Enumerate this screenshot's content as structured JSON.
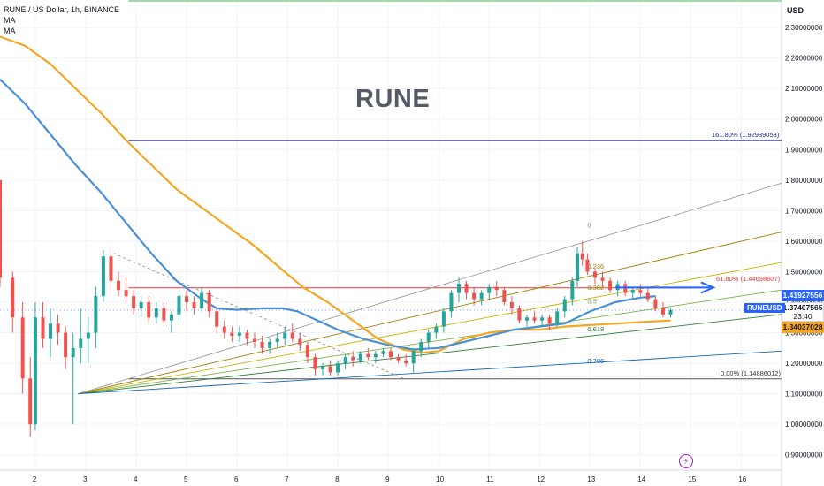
{
  "header": {
    "title": "RUNE / US Dollar, 1h, BINANCE",
    "ma1": "MA",
    "ma2": "MA"
  },
  "watermark": "RUNE",
  "currency": "USD",
  "colors": {
    "up": "#26a69a",
    "down": "#ef5350",
    "ma_fast": "#4a90d9",
    "ma_slow": "#f5a623",
    "accent": "#2962ff"
  },
  "chart_data": {
    "type": "candlestick",
    "x_tick_labels": [
      "2",
      "3",
      "4",
      "5",
      "6",
      "7",
      "8",
      "9",
      "10",
      "11",
      "12",
      "13",
      "14",
      "15",
      "16"
    ],
    "y_tick_labels": [
      "2.30000000",
      "2.20000000",
      "2.10000000",
      "2.00000000",
      "1.90000000",
      "1.80000000",
      "1.70000000",
      "1.60000000",
      "1.50000000",
      "1.40000000",
      "1.30000000",
      "1.20000000",
      "1.10000000",
      "1.00000000",
      "0.90000000"
    ],
    "ylim": [
      0.85,
      2.39
    ],
    "xlim": [
      1.3,
      16.8
    ],
    "price_labels": {
      "high_level": "1.41927556",
      "current": "1.37407565",
      "countdown": "23:40",
      "ma_level": "1.34037028",
      "symbol": "RUNEUSD"
    },
    "fib_extension": {
      "label": "161.80% (1.92939053)",
      "value": 1.92939053
    },
    "fib_618": {
      "label": "61.80% (1.44698607)",
      "value": 1.44698607
    },
    "fib_base": {
      "label": "0.00% (1.14886012)",
      "value": 1.14886012
    },
    "fan_labels": [
      "0",
      "0.236",
      "0.382",
      "0.5",
      "0.618",
      "0.786"
    ],
    "top_line_value": 2.39,
    "ma_fast": [
      [
        1.3,
        2.13
      ],
      [
        1.8,
        2.05
      ],
      [
        2.3,
        1.95
      ],
      [
        2.8,
        1.85
      ],
      [
        3.3,
        1.76
      ],
      [
        3.8,
        1.66
      ],
      [
        4.3,
        1.56
      ],
      [
        4.8,
        1.47
      ],
      [
        5.3,
        1.41
      ],
      [
        5.6,
        1.38
      ],
      [
        6.0,
        1.375
      ],
      [
        6.5,
        1.38
      ],
      [
        6.9,
        1.38
      ],
      [
        7.2,
        1.37
      ],
      [
        7.6,
        1.34
      ],
      [
        8.0,
        1.31
      ],
      [
        8.5,
        1.28
      ],
      [
        9.0,
        1.26
      ],
      [
        9.5,
        1.245
      ],
      [
        10.0,
        1.25
      ],
      [
        10.5,
        1.27
      ],
      [
        11.0,
        1.29
      ],
      [
        11.5,
        1.31
      ],
      [
        12.0,
        1.32
      ],
      [
        12.5,
        1.33
      ],
      [
        13.0,
        1.37
      ],
      [
        13.5,
        1.4
      ],
      [
        14.0,
        1.415
      ],
      [
        14.3,
        1.42
      ]
    ],
    "ma_slow": [
      [
        1.3,
        2.27
      ],
      [
        1.8,
        2.24
      ],
      [
        2.3,
        2.18
      ],
      [
        2.8,
        2.1
      ],
      [
        3.3,
        2.02
      ],
      [
        3.8,
        1.93
      ],
      [
        4.3,
        1.85
      ],
      [
        4.8,
        1.77
      ],
      [
        5.3,
        1.71
      ],
      [
        5.8,
        1.65
      ],
      [
        6.3,
        1.59
      ],
      [
        6.8,
        1.52
      ],
      [
        7.3,
        1.45
      ],
      [
        7.8,
        1.4
      ],
      [
        8.3,
        1.34
      ],
      [
        8.8,
        1.28
      ],
      [
        9.3,
        1.245
      ],
      [
        9.7,
        1.235
      ],
      [
        10.0,
        1.24
      ],
      [
        10.5,
        1.28
      ],
      [
        11.0,
        1.3
      ],
      [
        11.5,
        1.31
      ],
      [
        12.0,
        1.31
      ],
      [
        12.5,
        1.32
      ],
      [
        13.0,
        1.325
      ],
      [
        13.5,
        1.33
      ],
      [
        14.0,
        1.335
      ],
      [
        14.6,
        1.34
      ]
    ],
    "candles": [
      [
        1.3,
        1.8,
        1.8,
        1.45,
        1.48
      ],
      [
        1.55,
        1.48,
        1.5,
        1.3,
        1.35
      ],
      [
        1.75,
        1.35,
        1.4,
        1.1,
        1.15
      ],
      [
        1.9,
        1.15,
        1.22,
        0.96,
        1.0
      ],
      [
        2.0,
        1.0,
        1.4,
        0.98,
        1.35
      ],
      [
        2.15,
        1.35,
        1.4,
        1.25,
        1.28
      ],
      [
        2.3,
        1.28,
        1.38,
        1.22,
        1.33
      ],
      [
        2.45,
        1.33,
        1.36,
        1.26,
        1.3
      ],
      [
        2.6,
        1.3,
        1.32,
        1.18,
        1.22
      ],
      [
        2.75,
        1.22,
        1.3,
        1.0,
        1.25
      ],
      [
        2.9,
        1.25,
        1.38,
        1.2,
        1.28
      ],
      [
        3.05,
        1.28,
        1.35,
        1.2,
        1.3
      ],
      [
        3.2,
        1.3,
        1.45,
        1.25,
        1.42
      ],
      [
        3.35,
        1.42,
        1.57,
        1.4,
        1.55
      ],
      [
        3.5,
        1.55,
        1.58,
        1.44,
        1.47
      ],
      [
        3.65,
        1.47,
        1.5,
        1.42,
        1.44
      ],
      [
        3.8,
        1.44,
        1.48,
        1.4,
        1.42
      ],
      [
        3.95,
        1.42,
        1.44,
        1.36,
        1.38
      ],
      [
        4.1,
        1.38,
        1.42,
        1.35,
        1.4
      ],
      [
        4.25,
        1.4,
        1.42,
        1.33,
        1.35
      ],
      [
        4.4,
        1.35,
        1.4,
        1.33,
        1.38
      ],
      [
        4.55,
        1.38,
        1.4,
        1.32,
        1.34
      ],
      [
        4.7,
        1.34,
        1.37,
        1.3,
        1.36
      ],
      [
        4.85,
        1.36,
        1.44,
        1.34,
        1.42
      ],
      [
        5.0,
        1.42,
        1.44,
        1.37,
        1.4
      ],
      [
        5.15,
        1.4,
        1.42,
        1.36,
        1.38
      ],
      [
        5.3,
        1.38,
        1.45,
        1.37,
        1.43
      ],
      [
        5.45,
        1.43,
        1.44,
        1.35,
        1.37
      ],
      [
        5.6,
        1.37,
        1.38,
        1.3,
        1.32
      ],
      [
        5.75,
        1.32,
        1.34,
        1.28,
        1.3
      ],
      [
        5.9,
        1.3,
        1.32,
        1.27,
        1.29
      ],
      [
        6.05,
        1.29,
        1.32,
        1.27,
        1.3
      ],
      [
        6.2,
        1.3,
        1.31,
        1.26,
        1.28
      ],
      [
        6.35,
        1.28,
        1.3,
        1.25,
        1.27
      ],
      [
        6.5,
        1.27,
        1.29,
        1.23,
        1.25
      ],
      [
        6.65,
        1.25,
        1.28,
        1.23,
        1.27
      ],
      [
        6.8,
        1.27,
        1.3,
        1.25,
        1.28
      ],
      [
        6.95,
        1.28,
        1.32,
        1.26,
        1.3
      ],
      [
        7.1,
        1.3,
        1.33,
        1.27,
        1.28
      ],
      [
        7.25,
        1.28,
        1.3,
        1.24,
        1.26
      ],
      [
        7.4,
        1.26,
        1.27,
        1.2,
        1.22
      ],
      [
        7.55,
        1.22,
        1.23,
        1.16,
        1.18
      ],
      [
        7.7,
        1.18,
        1.2,
        1.16,
        1.19
      ],
      [
        7.85,
        1.19,
        1.21,
        1.16,
        1.17
      ],
      [
        8.0,
        1.17,
        1.21,
        1.16,
        1.2
      ],
      [
        8.15,
        1.2,
        1.23,
        1.18,
        1.22
      ],
      [
        8.3,
        1.22,
        1.24,
        1.19,
        1.21
      ],
      [
        8.45,
        1.21,
        1.24,
        1.2,
        1.23
      ],
      [
        8.6,
        1.23,
        1.25,
        1.21,
        1.22
      ],
      [
        8.75,
        1.22,
        1.24,
        1.2,
        1.23
      ],
      [
        8.9,
        1.23,
        1.25,
        1.22,
        1.24
      ],
      [
        9.05,
        1.24,
        1.25,
        1.21,
        1.22
      ],
      [
        9.2,
        1.22,
        1.23,
        1.2,
        1.21
      ],
      [
        9.35,
        1.21,
        1.23,
        1.19,
        1.2
      ],
      [
        9.5,
        1.2,
        1.25,
        1.17,
        1.24
      ],
      [
        9.65,
        1.24,
        1.28,
        1.22,
        1.27
      ],
      [
        9.8,
        1.27,
        1.31,
        1.25,
        1.3
      ],
      [
        9.95,
        1.3,
        1.33,
        1.28,
        1.32
      ],
      [
        10.1,
        1.32,
        1.38,
        1.3,
        1.37
      ],
      [
        10.25,
        1.37,
        1.44,
        1.35,
        1.43
      ],
      [
        10.4,
        1.43,
        1.48,
        1.4,
        1.46
      ],
      [
        10.55,
        1.46,
        1.47,
        1.41,
        1.43
      ],
      [
        10.7,
        1.43,
        1.45,
        1.39,
        1.41
      ],
      [
        10.85,
        1.41,
        1.44,
        1.39,
        1.43
      ],
      [
        11.0,
        1.43,
        1.46,
        1.41,
        1.45
      ],
      [
        11.15,
        1.45,
        1.47,
        1.42,
        1.44
      ],
      [
        11.3,
        1.44,
        1.45,
        1.39,
        1.4
      ],
      [
        11.45,
        1.4,
        1.42,
        1.36,
        1.38
      ],
      [
        11.6,
        1.38,
        1.39,
        1.33,
        1.34
      ],
      [
        11.75,
        1.34,
        1.36,
        1.32,
        1.35
      ],
      [
        11.9,
        1.35,
        1.37,
        1.33,
        1.34
      ],
      [
        12.05,
        1.34,
        1.36,
        1.32,
        1.35
      ],
      [
        12.2,
        1.35,
        1.36,
        1.31,
        1.33
      ],
      [
        12.35,
        1.33,
        1.38,
        1.32,
        1.37
      ],
      [
        12.5,
        1.37,
        1.42,
        1.35,
        1.41
      ],
      [
        12.65,
        1.41,
        1.48,
        1.39,
        1.47
      ],
      [
        12.75,
        1.47,
        1.58,
        1.45,
        1.56
      ],
      [
        12.85,
        1.56,
        1.6,
        1.52,
        1.54
      ],
      [
        12.95,
        1.54,
        1.56,
        1.49,
        1.5
      ],
      [
        13.1,
        1.5,
        1.51,
        1.46,
        1.48
      ],
      [
        13.25,
        1.48,
        1.5,
        1.45,
        1.47
      ],
      [
        13.4,
        1.47,
        1.48,
        1.43,
        1.44
      ],
      [
        13.55,
        1.44,
        1.47,
        1.42,
        1.46
      ],
      [
        13.7,
        1.46,
        1.47,
        1.42,
        1.43
      ],
      [
        13.85,
        1.43,
        1.45,
        1.41,
        1.44
      ],
      [
        14.0,
        1.44,
        1.46,
        1.42,
        1.43
      ],
      [
        14.15,
        1.43,
        1.45,
        1.4,
        1.41
      ],
      [
        14.3,
        1.41,
        1.42,
        1.37,
        1.38
      ],
      [
        14.45,
        1.38,
        1.4,
        1.35,
        1.36
      ],
      [
        14.6,
        1.36,
        1.38,
        1.35,
        1.374
      ]
    ]
  }
}
